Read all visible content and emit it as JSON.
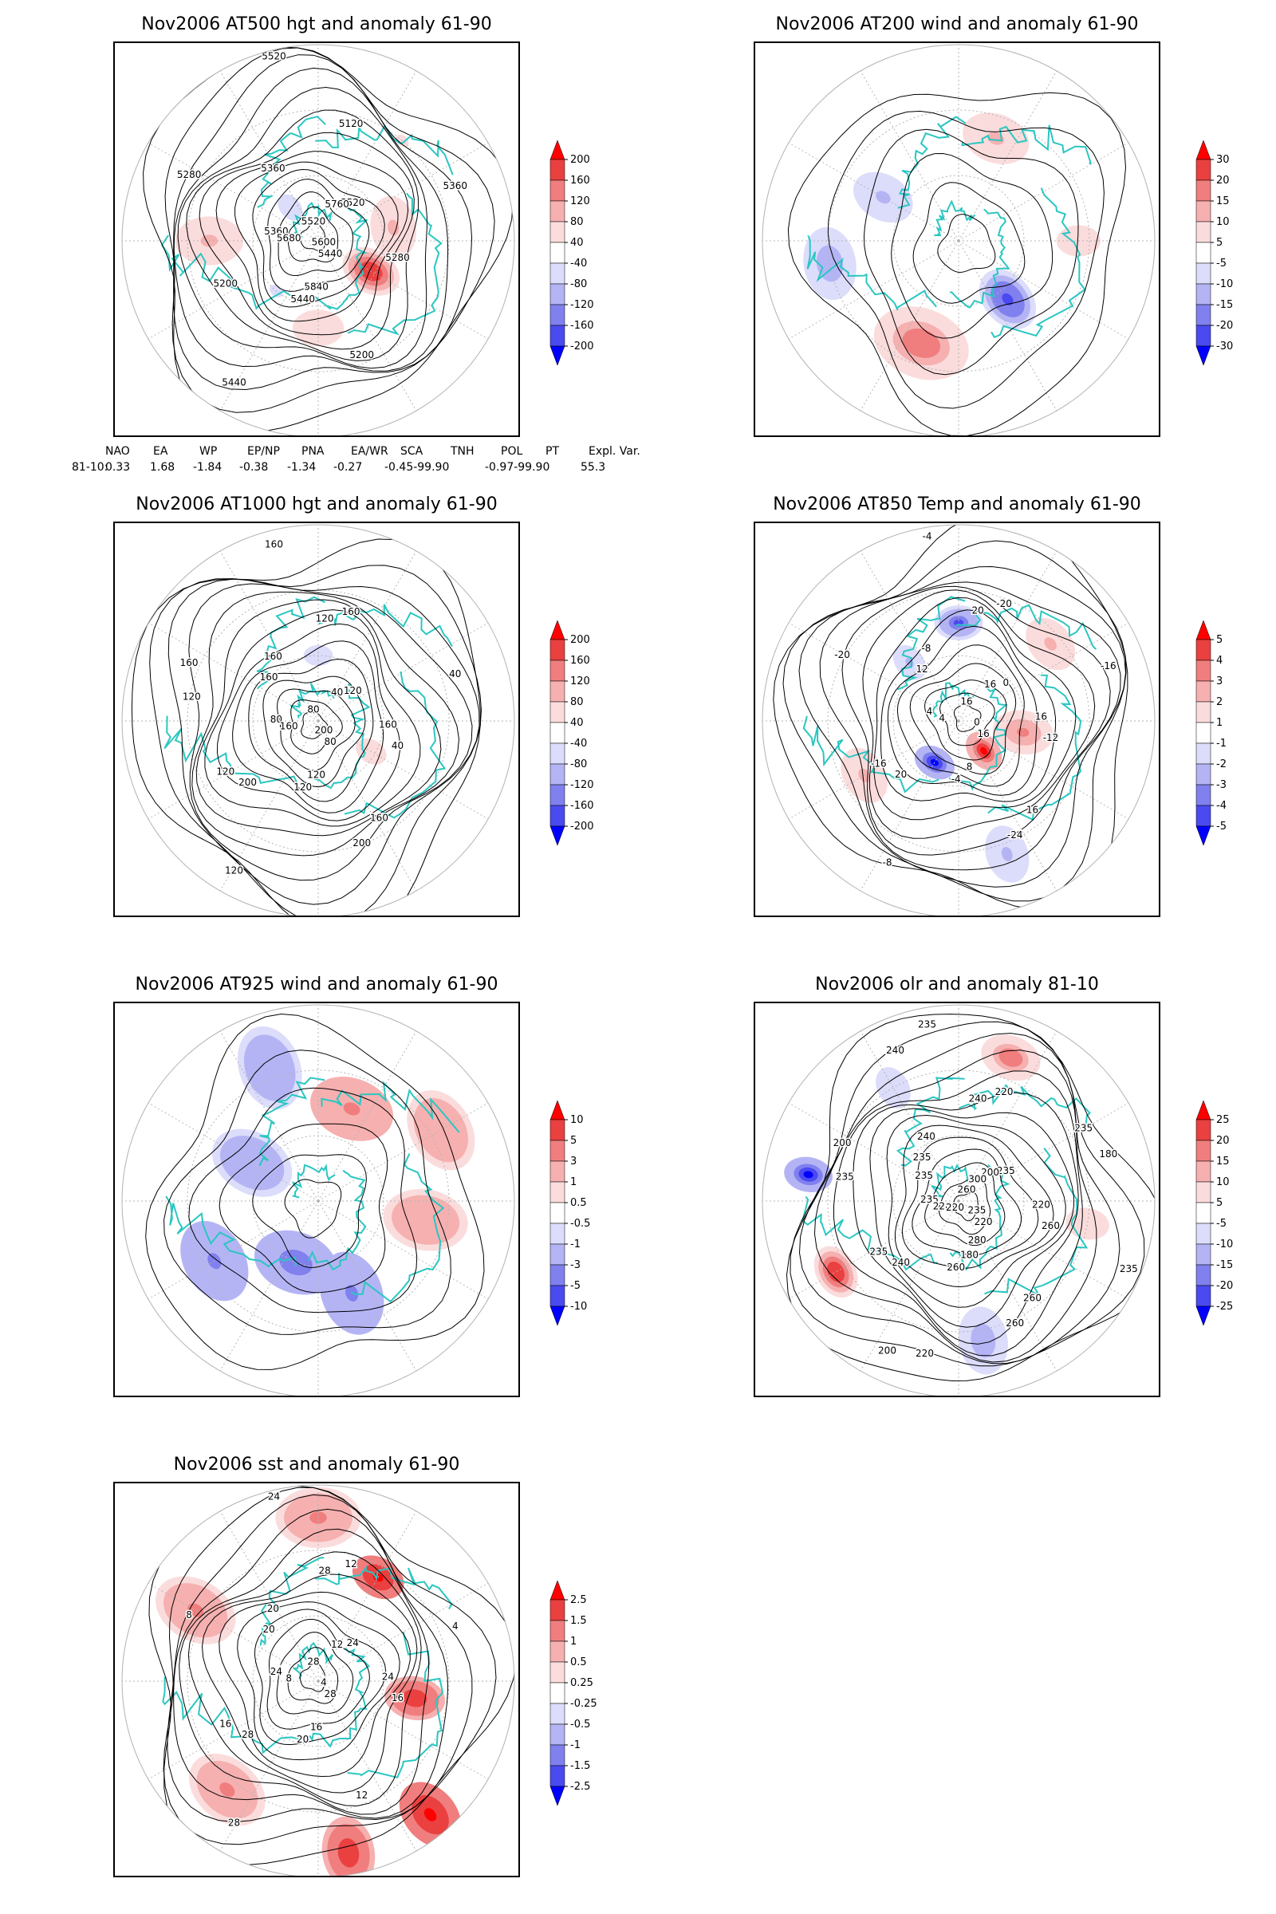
{
  "panels": [
    {
      "id": "p500",
      "title": "Nov2006 AT500 hgt and anomaly 61-90",
      "colorbar_labels": [
        "200",
        "160",
        "120",
        "80",
        "40",
        "-40",
        "-80",
        "-120",
        "-160",
        "-200"
      ],
      "contour_labels": [
        "5520",
        "5440",
        "5360",
        "5520",
        "5440",
        "5360",
        "5280",
        "5200",
        "5120",
        "5200",
        "5280",
        "5360",
        "5440",
        "5520",
        "5600",
        "5680",
        "5760",
        "5840"
      ],
      "anomalies": [
        {
          "lon": 120,
          "lat": 62,
          "value": 190,
          "spread": 10
        },
        {
          "lon": 80,
          "lat": 55,
          "value": 90,
          "spread": 13
        },
        {
          "lon": 270,
          "lat": 40,
          "value": 80,
          "spread": 14
        },
        {
          "lon": 180,
          "lat": 50,
          "value": 60,
          "spread": 14
        },
        {
          "lon": 320,
          "lat": 70,
          "value": -50,
          "spread": 12
        },
        {
          "lon": 40,
          "lat": 30,
          "value": 40,
          "spread": 12
        },
        {
          "lon": 220,
          "lat": 60,
          "value": -45,
          "spread": 12
        }
      ],
      "teleconnections": {
        "headers": [
          "NAO",
          "EA",
          "WP",
          "EP/NP",
          "PNA",
          "EA/WR",
          "SCA",
          "TNH",
          "POL",
          "PT",
          "Expl. Var."
        ],
        "row_label": "81-10:",
        "values": [
          "0.33",
          "1.68",
          "-1.84",
          "-0.38",
          "-1.34",
          "-0.27",
          "-0.45-99.90",
          "",
          "-0.97-99.90",
          "",
          "55.3"
        ]
      }
    },
    {
      "id": "p200",
      "title": "Nov2006 AT200 wind and anomaly 61-90",
      "colorbar_labels": [
        "30",
        "20",
        "15",
        "10",
        "5",
        "-5",
        "-10",
        "-15",
        "-20",
        "-30"
      ],
      "contour_labels": [],
      "anomalies": [
        {
          "lon": 200,
          "lat": 40,
          "value": 18,
          "spread": 16
        },
        {
          "lon": 140,
          "lat": 55,
          "value": -22,
          "spread": 11
        },
        {
          "lon": 260,
          "lat": 30,
          "value": -12,
          "spread": 15
        },
        {
          "lon": 20,
          "lat": 40,
          "value": 10,
          "spread": 14
        },
        {
          "lon": 300,
          "lat": 50,
          "value": -10,
          "spread": 13
        },
        {
          "lon": 90,
          "lat": 35,
          "value": 8,
          "spread": 12
        }
      ]
    },
    {
      "id": "p1000",
      "title": "Nov2006 AT1000 hgt and anomaly 61-90",
      "colorbar_labels": [
        "200",
        "160",
        "120",
        "80",
        "40",
        "-40",
        "-80",
        "-120",
        "-160",
        "-200"
      ],
      "contour_labels": [
        "80",
        "80",
        "80",
        "120",
        "120",
        "160",
        "40",
        "120",
        "160",
        "200",
        "160",
        "40",
        "120",
        "160",
        "200",
        "160",
        "40",
        "120",
        "160",
        "160",
        "200",
        "120",
        "160",
        "120"
      ],
      "anomalies": [
        {
          "lon": 120,
          "lat": 62,
          "value": 70,
          "spread": 9
        },
        {
          "lon": 0,
          "lat": 60,
          "value": -70,
          "spread": 8
        },
        {
          "lon": 60,
          "lat": 55,
          "value": 30,
          "spread": 12
        },
        {
          "lon": 240,
          "lat": 55,
          "value": 25,
          "spread": 12
        }
      ]
    },
    {
      "id": "p850",
      "title": "Nov2006 AT850 Temp and anomaly 61-90",
      "colorbar_labels": [
        "5",
        "4",
        "3",
        "2",
        "1",
        "-1",
        "-2",
        "-3",
        "-4",
        "-5"
      ],
      "contour_labels": [
        "16",
        "16",
        "4",
        "0",
        "-4",
        "-8",
        "-12",
        "-16",
        "-20",
        "-24",
        "-20",
        "-16",
        "-8",
        "-4",
        "0",
        "4",
        "16",
        "8",
        "12",
        "16",
        "20",
        "20",
        "16"
      ],
      "anomalies": [
        {
          "lon": 140,
          "lat": 72,
          "value": 5,
          "spread": 7
        },
        {
          "lon": 210,
          "lat": 68,
          "value": -5,
          "spread": 7
        },
        {
          "lon": 100,
          "lat": 60,
          "value": 3,
          "spread": 10
        },
        {
          "lon": 0,
          "lat": 45,
          "value": -4,
          "spread": 8
        },
        {
          "lon": 320,
          "lat": 55,
          "value": -2,
          "spread": 8
        },
        {
          "lon": 50,
          "lat": 35,
          "value": 2,
          "spread": 12
        },
        {
          "lon": 160,
          "lat": 25,
          "value": -2,
          "spread": 12
        },
        {
          "lon": 240,
          "lat": 40,
          "value": 2,
          "spread": 12
        }
      ]
    },
    {
      "id": "p925",
      "title": "Nov2006 AT925 wind and anomaly 61-90",
      "colorbar_labels": [
        "10",
        "5",
        "3",
        "1",
        "0.5",
        "-0.5",
        "-1",
        "-3",
        "-5",
        "-10"
      ],
      "contour_labels": [],
      "anomalies": [
        {
          "lon": 200,
          "lat": 60,
          "value": -4,
          "spread": 14
        },
        {
          "lon": 160,
          "lat": 45,
          "value": -3,
          "spread": 14
        },
        {
          "lon": 240,
          "lat": 35,
          "value": -3,
          "spread": 14
        },
        {
          "lon": 100,
          "lat": 40,
          "value": 2,
          "spread": 14
        },
        {
          "lon": 20,
          "lat": 45,
          "value": 3,
          "spread": 14
        },
        {
          "lon": 300,
          "lat": 55,
          "value": -2,
          "spread": 14
        },
        {
          "lon": 60,
          "lat": 25,
          "value": 2,
          "spread": 14
        },
        {
          "lon": 340,
          "lat": 25,
          "value": -2,
          "spread": 14
        }
      ]
    },
    {
      "id": "polr",
      "title": "Nov2006 olr and anomaly 81-10",
      "colorbar_labels": [
        "25",
        "20",
        "15",
        "10",
        "5",
        "-5",
        "-10",
        "-15",
        "-20",
        "-25"
      ],
      "contour_labels": [
        "260",
        "220",
        "235",
        "235",
        "260",
        "240",
        "260",
        "235",
        "220",
        "260",
        "200",
        "180",
        "200",
        "235",
        "235",
        "220",
        "200",
        "180",
        "235",
        "220",
        "240",
        "240",
        "260",
        "235",
        "235",
        "220",
        "240",
        "235",
        "220",
        "300",
        "280",
        "235"
      ],
      "anomalies": [
        {
          "lon": 240,
          "lat": 25,
          "value": 24,
          "spread": 9
        },
        {
          "lon": 280,
          "lat": 20,
          "value": -25,
          "spread": 8
        },
        {
          "lon": 170,
          "lat": 25,
          "value": -12,
          "spread": 14
        },
        {
          "lon": 20,
          "lat": 20,
          "value": 18,
          "spread": 10
        },
        {
          "lon": 100,
          "lat": 30,
          "value": 8,
          "spread": 12
        },
        {
          "lon": 330,
          "lat": 30,
          "value": -8,
          "spread": 12
        }
      ]
    },
    {
      "id": "psst",
      "title": "Nov2006 sst and anomaly 61-90",
      "colorbar_labels": [
        "2.5",
        "1.5",
        "1",
        "0.5",
        "0.25",
        "-0.25",
        "-0.5",
        "-1",
        "-1.5",
        "-2.5"
      ],
      "contour_labels": [
        "28",
        "28",
        "24",
        "24",
        "20",
        "20",
        "16",
        "16",
        "12",
        "12",
        "8",
        "4",
        "28",
        "24",
        "4",
        "8",
        "12",
        "16",
        "20",
        "24",
        "28",
        "28"
      ],
      "anomalies": [
        {
          "lon": 140,
          "lat": 10,
          "value": 2.5,
          "spread": 12
        },
        {
          "lon": 170,
          "lat": 10,
          "value": 2,
          "spread": 12
        },
        {
          "lon": 30,
          "lat": 35,
          "value": 2.5,
          "spread": 9
        },
        {
          "lon": 100,
          "lat": 45,
          "value": 2,
          "spread": 10
        },
        {
          "lon": 0,
          "lat": 15,
          "value": 1,
          "spread": 14
        },
        {
          "lon": 220,
          "lat": 25,
          "value": 1,
          "spread": 14
        },
        {
          "lon": 300,
          "lat": 25,
          "value": 1,
          "spread": 14
        }
      ]
    }
  ],
  "colors": {
    "coastline": "#2bc6c1",
    "contour": "#000000",
    "frame": "#000000",
    "grid": "#b4b4b4",
    "positive_scale": [
      "#fbdcdc",
      "#f6b0b0",
      "#f07e7e",
      "#ea4040",
      "#ff0000"
    ],
    "negative_scale": [
      "#dcdcfb",
      "#b4b4f5",
      "#8080ee",
      "#4a4af0",
      "#0000ff"
    ]
  }
}
